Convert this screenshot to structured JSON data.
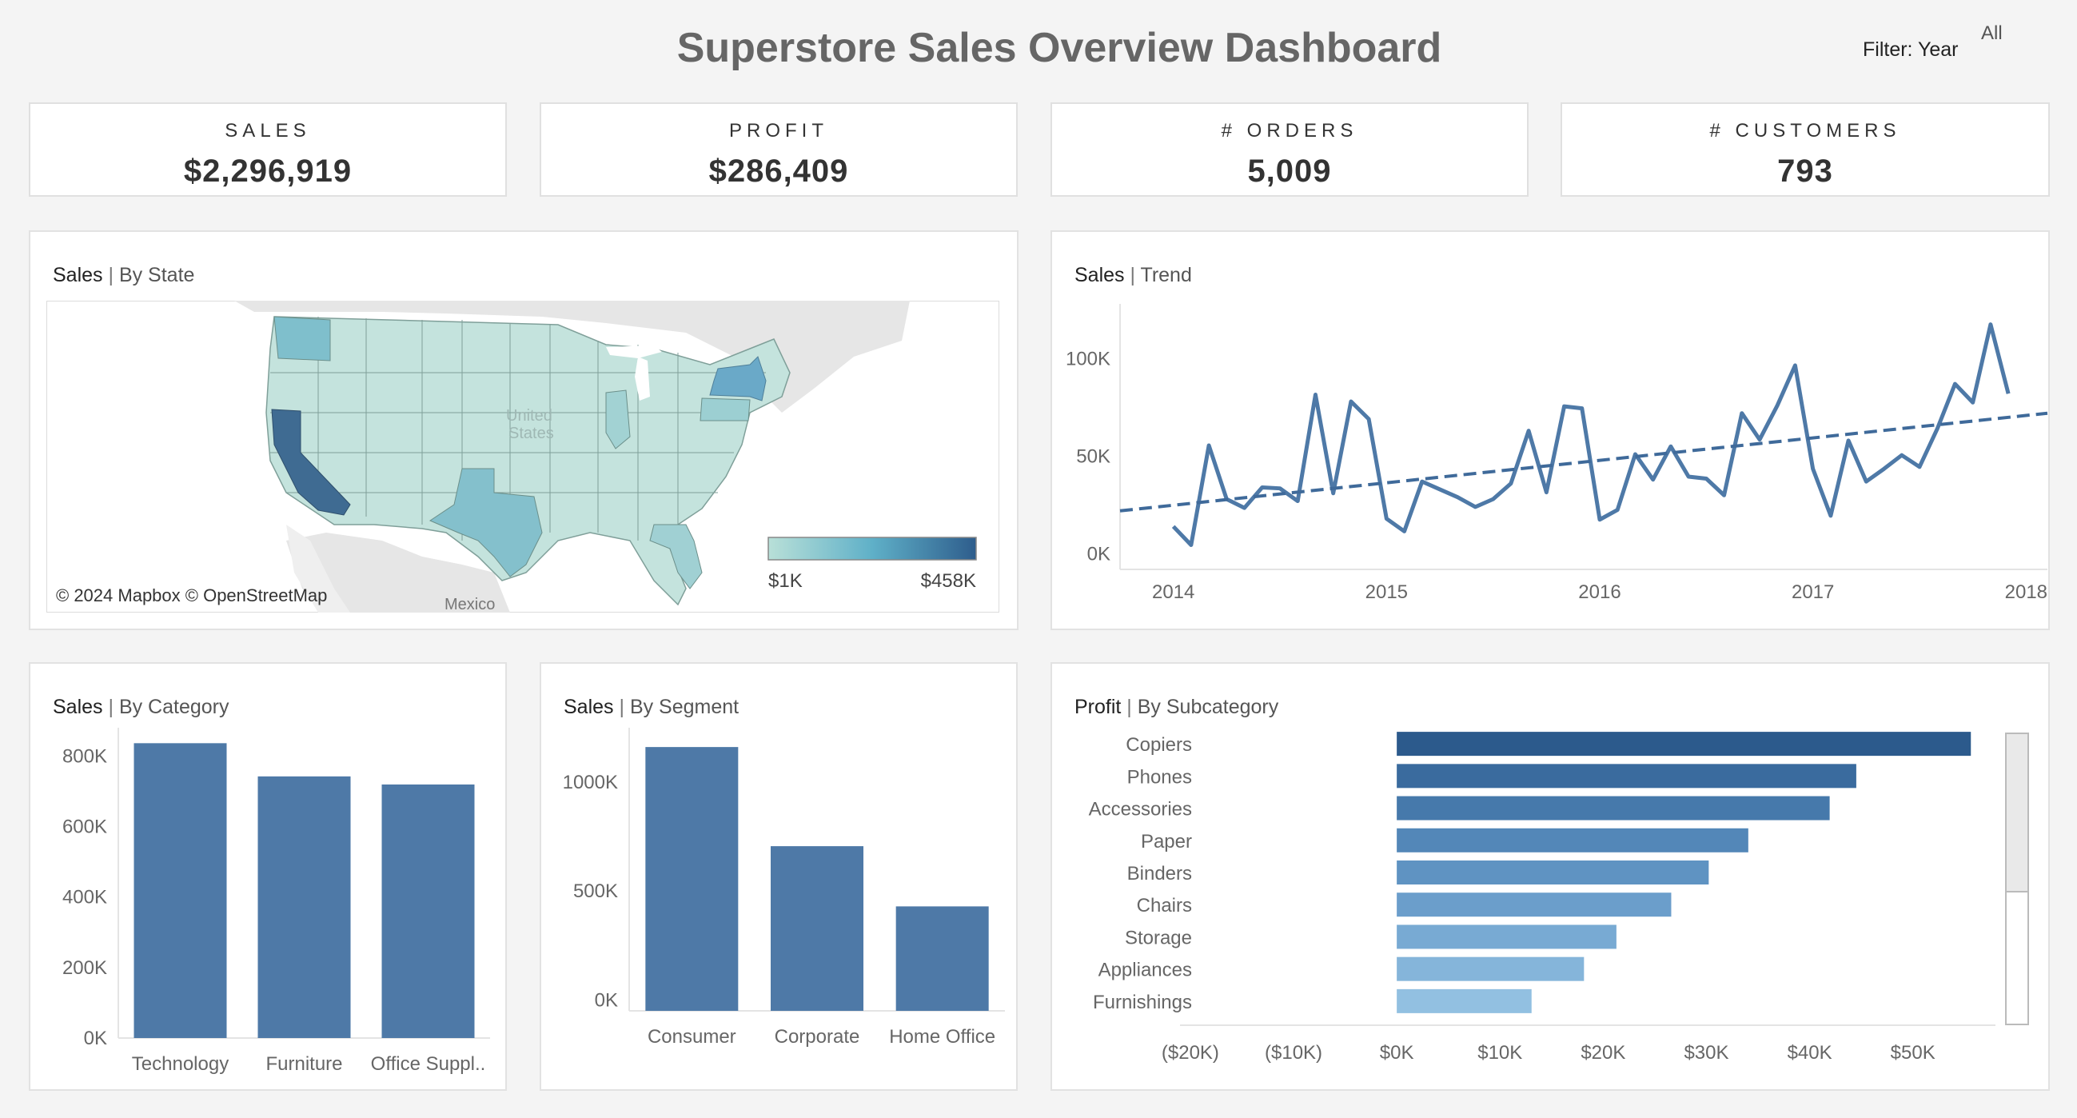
{
  "header": {
    "title": "Superstore Sales Overview Dashboard",
    "filter_label": "Filter: Year",
    "filter_value": "All"
  },
  "kpis": [
    {
      "label": "SALES",
      "value": "$2,296,919"
    },
    {
      "label": "PROFIT",
      "value": "$286,409"
    },
    {
      "label": "# ORDERS",
      "value": "5,009"
    },
    {
      "label": "# CUSTOMERS",
      "value": "793"
    }
  ],
  "map_panel": {
    "title_main": "Sales",
    "title_sep": " | ",
    "title_sub": "By State",
    "attribution": "© 2024 Mapbox © OpenStreetMap",
    "country_label_1": "United",
    "country_label_2": "States",
    "mexico_label": "Mexico",
    "legend_min": "$1K",
    "legend_max": "$458K",
    "legend_color_low": "#b9e0d8",
    "legend_color_mid": "#5fb0c8",
    "legend_color_high": "#2e5d8c"
  },
  "trend_panel": {
    "title_main": "Sales",
    "title_sep": " | ",
    "title_sub": "Trend"
  },
  "category_panel": {
    "title_main": "Sales",
    "title_sep": " | ",
    "title_sub": "By Category"
  },
  "segment_panel": {
    "title_main": "Sales",
    "title_sep": " | ",
    "title_sub": "By  Segment"
  },
  "subcategory_panel": {
    "title_main": "Profit",
    "title_sep": " | ",
    "title_sub": "By Subcategory"
  },
  "colors": {
    "bar": "#4e79a7",
    "line": "#4e79a7"
  },
  "chart_data": [
    {
      "id": "trend",
      "type": "line",
      "title": "Sales | Trend",
      "x_ticks": [
        "2014",
        "2015",
        "2016",
        "2017",
        "2018"
      ],
      "y_ticks": [
        "0K",
        "50K",
        "100K"
      ],
      "ylim": [
        -8000,
        128000
      ],
      "xlim": [
        2013.75,
        2018.1
      ],
      "x_start": 2014.0,
      "x_step_months": 1,
      "values": [
        14000,
        4500,
        55500,
        28000,
        23500,
        34000,
        33500,
        27000,
        81500,
        31000,
        78000,
        69000,
        18000,
        11500,
        37000,
        33000,
        29000,
        24000,
        28000,
        36000,
        63000,
        31500,
        75500,
        74500,
        17500,
        22500,
        51000,
        38000,
        55000,
        39500,
        38500,
        30000,
        72000,
        58500,
        76000,
        96500,
        43500,
        19500,
        58000,
        37000,
        43500,
        50500,
        44500,
        64000,
        87000,
        77500,
        117500,
        82000
      ],
      "trend_line": {
        "style": "dashed",
        "x": [
          2013.75,
          2018.1
        ],
        "y": [
          22000,
          72000
        ]
      },
      "grid": false
    },
    {
      "id": "category",
      "type": "bar",
      "title": "Sales | By Category",
      "categories": [
        "Technology",
        "Furniture",
        "Office Suppl.."
      ],
      "values": [
        836154,
        742000,
        719047
      ],
      "y_ticks": [
        "0K",
        "200K",
        "400K",
        "600K",
        "800K"
      ],
      "ylim": [
        0,
        880000
      ],
      "grid": false
    },
    {
      "id": "segment",
      "type": "bar",
      "title": "Sales | By Segment",
      "categories": [
        "Consumer",
        "Corporate",
        "Home Office"
      ],
      "values": [
        1161401,
        706146,
        429653
      ],
      "y_ticks": [
        "0K",
        "500K",
        "1000K"
      ],
      "ylim": [
        -50000,
        1250000
      ],
      "grid": false
    },
    {
      "id": "subcategory",
      "type": "bar",
      "orientation": "horizontal",
      "title": "Profit | By Subcategory",
      "categories": [
        "Copiers",
        "Phones",
        "Accessories",
        "Paper",
        "Binders",
        "Chairs",
        "Storage",
        "Appliances",
        "Furnishings"
      ],
      "values": [
        55618,
        44516,
        41937,
        34054,
        30222,
        26590,
        21279,
        18138,
        13059
      ],
      "x_ticks": [
        "($20K)",
        "($10K)",
        "$0K",
        "$10K",
        "$20K",
        "$30K",
        "$40K",
        "$50K"
      ],
      "xlim": [
        -21000,
        58000
      ],
      "colors": [
        "#2c5a8c",
        "#3a6b9e",
        "#4679ab",
        "#5387b8",
        "#5f93c2",
        "#6b9ecb",
        "#78aad3",
        "#85b5da",
        "#92c0e1"
      ],
      "grid": false
    }
  ]
}
